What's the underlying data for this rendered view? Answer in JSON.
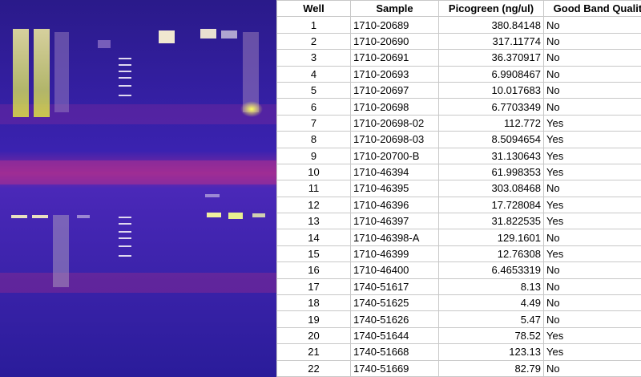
{
  "table": {
    "header": [
      "Well",
      "Sample",
      "Picogreen (ng/ul)",
      "Good Band Quality?"
    ],
    "rows": [
      [
        "1",
        "1710-20689",
        "380.84148",
        "No"
      ],
      [
        "2",
        "1710-20690",
        "317.11774",
        "No"
      ],
      [
        "3",
        "1710-20691",
        "36.370917",
        "No"
      ],
      [
        "4",
        "1710-20693",
        "6.9908467",
        "No"
      ],
      [
        "5",
        "1710-20697",
        "10.017683",
        "No"
      ],
      [
        "6",
        "1710-20698",
        "6.7703349",
        "No"
      ],
      [
        "7",
        "1710-20698-02",
        "112.772",
        "Yes"
      ],
      [
        "8",
        "1710-20698-03",
        "8.5094654",
        "Yes"
      ],
      [
        "9",
        "1710-20700-B",
        "31.130643",
        "Yes"
      ],
      [
        "10",
        "1710-46394",
        "61.998353",
        "Yes"
      ],
      [
        "11",
        "1710-46395",
        "303.08468",
        "No"
      ],
      [
        "12",
        "1710-46396",
        "17.728084",
        "Yes"
      ],
      [
        "13",
        "1710-46397",
        "31.822535",
        "Yes"
      ],
      [
        "14",
        "1710-46398-A",
        "129.1601",
        "No"
      ],
      [
        "15",
        "1710-46399",
        "12.76308",
        "Yes"
      ],
      [
        "16",
        "1710-46400",
        "6.4653319",
        "No"
      ],
      [
        "17",
        "1740-51617",
        "8.13",
        "No"
      ],
      [
        "18",
        "1740-51625",
        "4.49",
        "No"
      ],
      [
        "19",
        "1740-51626",
        "5.47",
        "No"
      ],
      [
        "20",
        "1740-51644",
        "78.52",
        "Yes"
      ],
      [
        "21",
        "1740-51668",
        "123.13",
        "Yes"
      ],
      [
        "22",
        "1740-51669",
        "82.79",
        "No"
      ]
    ]
  }
}
